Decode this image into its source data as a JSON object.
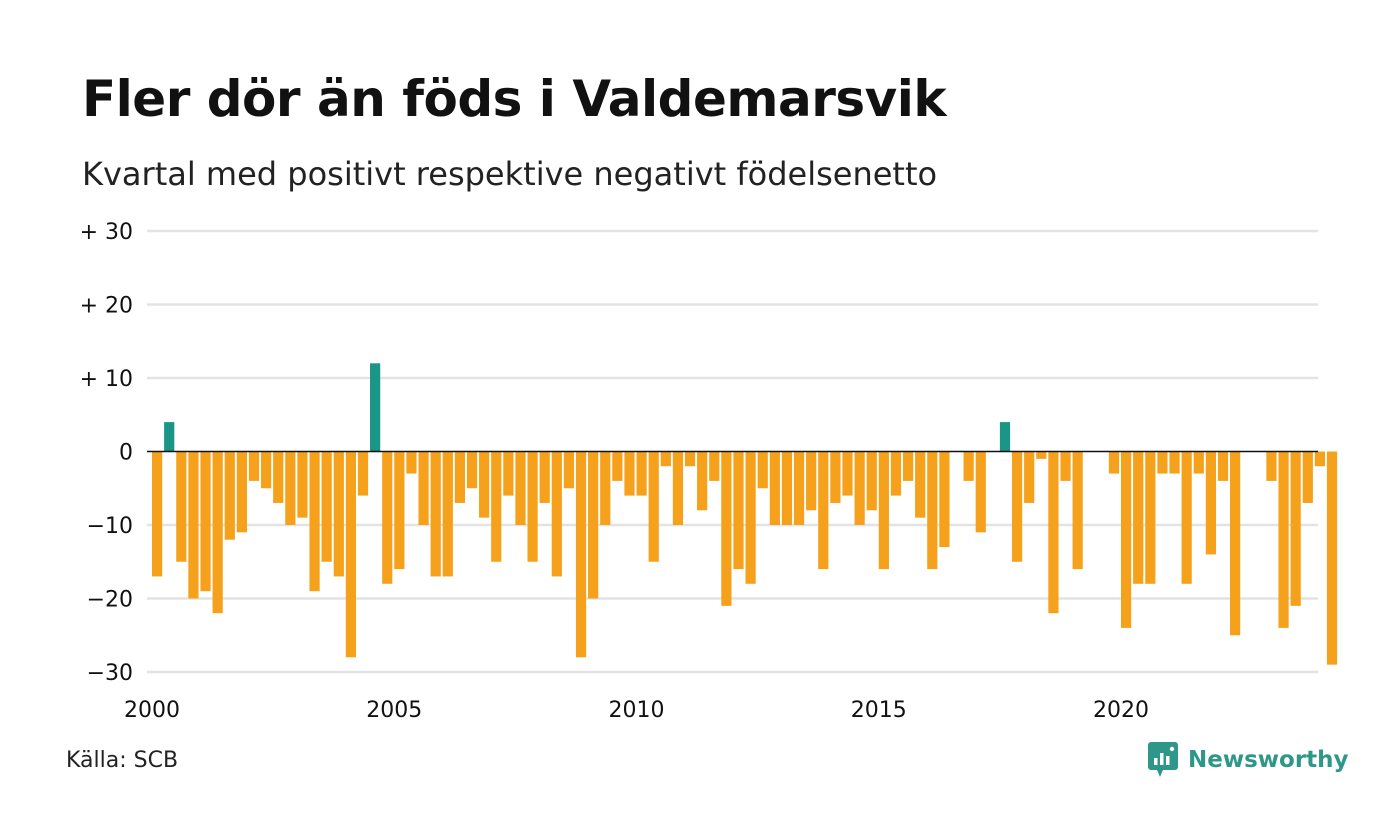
{
  "title": "Fler dör än föds i Valdemarsvik",
  "subtitle": "Kvartal med positivt respektive negativt födelsenetto",
  "source": "Källa: SCB",
  "brand": "Newsworthy",
  "colors": {
    "positive": "#1a9688",
    "negative": "#f5a11c",
    "grid": "#e3e3e3",
    "zero": "#111111"
  },
  "chart_data": {
    "type": "bar",
    "title": "Fler dör än föds i Valdemarsvik",
    "subtitle": "Kvartal med positivt respektive negativt födelsenetto",
    "xlabel": "",
    "ylabel": "",
    "ylim": [
      -30,
      30
    ],
    "grid": true,
    "x_tick_labels": [
      "2000",
      "2005",
      "2010",
      "2015",
      "2020"
    ],
    "y_ticks": [
      {
        "value": 30,
        "label": "+ 30"
      },
      {
        "value": 20,
        "label": "+ 20"
      },
      {
        "value": 10,
        "label": "+ 10"
      },
      {
        "value": 0,
        "label": "0"
      },
      {
        "value": -10,
        "label": "−10"
      },
      {
        "value": -20,
        "label": "−20"
      },
      {
        "value": -30,
        "label": "−30"
      }
    ],
    "x_start": "2000 Q1",
    "x_end": "2023 Q4",
    "period": "quarter",
    "values": [
      -17,
      4,
      -15,
      -20,
      -19,
      -22,
      -12,
      -11,
      -4,
      -5,
      -7,
      -10,
      -9,
      -19,
      -15,
      -17,
      -28,
      -6,
      12,
      -18,
      -16,
      -3,
      -10,
      -17,
      -17,
      -7,
      -5,
      -9,
      -15,
      -6,
      -10,
      -15,
      -7,
      -17,
      -5,
      -28,
      -20,
      -10,
      -4,
      -6,
      -6,
      -15,
      -2,
      -10,
      -2,
      -8,
      -4,
      -21,
      -16,
      -18,
      -5,
      -10,
      -10,
      -10,
      -8,
      -16,
      -7,
      -6,
      -10,
      -8,
      -16,
      -6,
      -4,
      -9,
      -16,
      -13,
      0,
      -4,
      -11,
      0,
      4,
      -15,
      -7,
      -1,
      -22,
      -4,
      -16,
      0,
      0,
      -3,
      -24,
      -18,
      -18,
      -3,
      -3,
      -18,
      -3,
      -14,
      -4,
      -25,
      0,
      0,
      -4,
      -24,
      -21,
      -7,
      -2,
      -29
    ]
  }
}
